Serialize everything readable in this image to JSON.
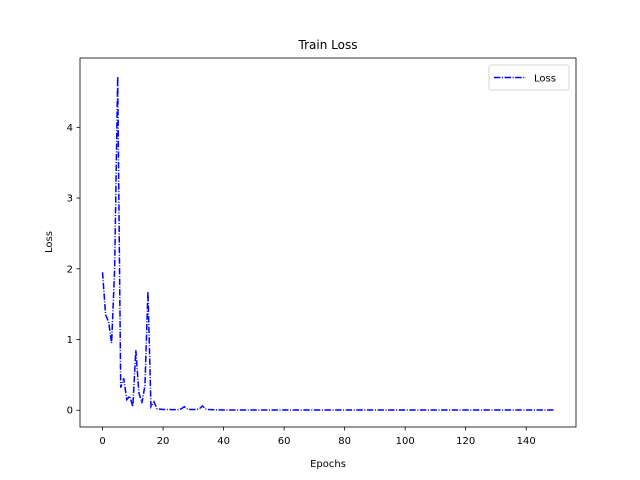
{
  "chart_data": {
    "type": "line",
    "title": "Train Loss",
    "xlabel": "Epochs",
    "ylabel": "Loss",
    "xlim": [
      -7.45,
      156.45
    ],
    "ylim": [
      -0.237,
      4.98
    ],
    "xticks": [
      0,
      20,
      40,
      60,
      80,
      100,
      120,
      140
    ],
    "yticks": [
      0,
      1,
      2,
      3,
      4
    ],
    "grid": false,
    "legend_position": "top-right",
    "series": [
      {
        "name": "Loss",
        "color": "#0000ff",
        "line_style": "dash-dot",
        "x": [
          0,
          1,
          2,
          3,
          4,
          5,
          6,
          7,
          8,
          9,
          10,
          11,
          12,
          13,
          14,
          15,
          16,
          17,
          18,
          19,
          20,
          21,
          22,
          23,
          24,
          25,
          26,
          27,
          28,
          29,
          30,
          31,
          32,
          33,
          34,
          35,
          36,
          37,
          38,
          39,
          40,
          45,
          50,
          60,
          70,
          80,
          90,
          100,
          110,
          120,
          130,
          140,
          149
        ],
        "y": [
          1.95,
          1.35,
          1.25,
          0.95,
          2.0,
          4.72,
          0.32,
          0.45,
          0.15,
          0.2,
          0.05,
          0.85,
          0.25,
          0.1,
          0.35,
          1.68,
          0.05,
          0.12,
          0.02,
          0.015,
          0.01,
          0.01,
          0.01,
          0.008,
          0.008,
          0.01,
          0.02,
          0.05,
          0.02,
          0.01,
          0.01,
          0.01,
          0.02,
          0.06,
          0.02,
          0.01,
          0.008,
          0.006,
          0.005,
          0.005,
          0.004,
          0.003,
          0.003,
          0.003,
          0.003,
          0.003,
          0.003,
          0.003,
          0.003,
          0.003,
          0.003,
          0.003,
          0.003
        ]
      }
    ]
  }
}
